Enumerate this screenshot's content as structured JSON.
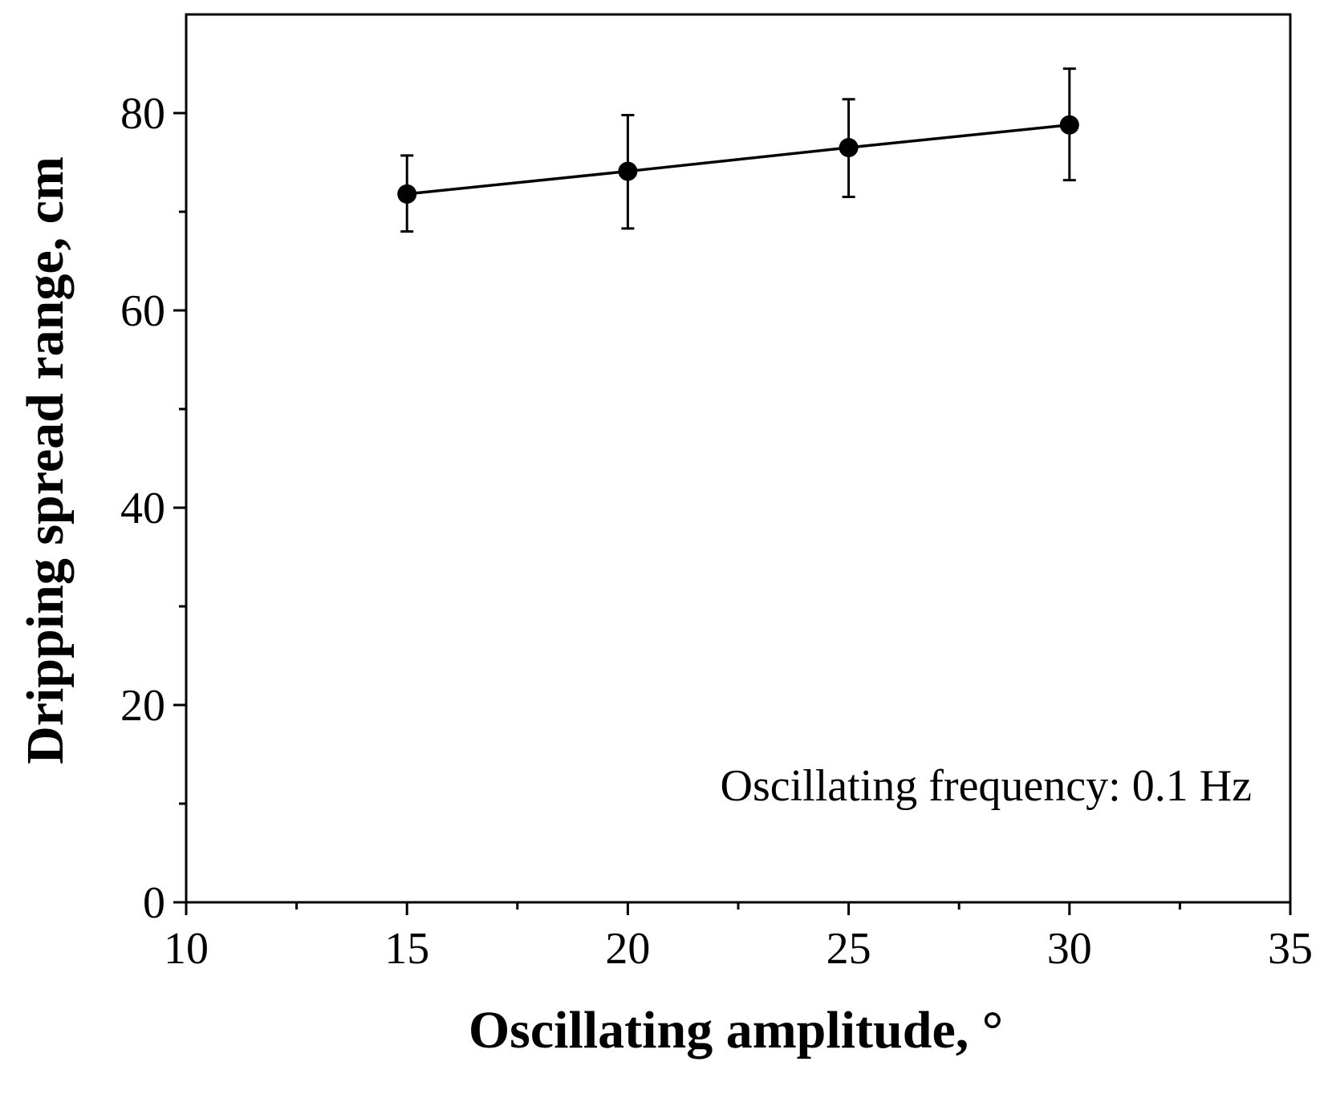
{
  "chart_data": {
    "type": "line",
    "title": "",
    "xlabel": "Oscillating amplitude, °",
    "ylabel": "Dripping spread range, cm",
    "xlim": [
      10,
      35
    ],
    "ylim": [
      0,
      90
    ],
    "x_major_ticks": [
      10,
      15,
      20,
      25,
      30,
      35
    ],
    "x_tick_labels": [
      "10",
      "15",
      "20",
      "25",
      "30",
      "35"
    ],
    "x_minor_ticks": [
      12.5,
      17.5,
      22.5,
      27.5,
      32.5
    ],
    "y_major_ticks": [
      0,
      20,
      40,
      60,
      80
    ],
    "y_tick_labels": [
      "0",
      "20",
      "40",
      "60",
      "80"
    ],
    "y_minor_ticks": [
      10,
      30,
      50,
      70
    ],
    "grid": false,
    "series": [
      {
        "name": "Oscillating frequency: 0.1 Hz",
        "x": [
          15,
          20,
          25,
          30
        ],
        "y": [
          71.8,
          74.1,
          76.5,
          78.8
        ],
        "err_low": [
          68.0,
          68.3,
          71.5,
          73.2
        ],
        "err_high": [
          75.7,
          79.8,
          81.4,
          84.5
        ],
        "color": "#000000",
        "marker": "circle"
      }
    ],
    "annotation": "Oscillating frequency: 0.1 Hz"
  }
}
